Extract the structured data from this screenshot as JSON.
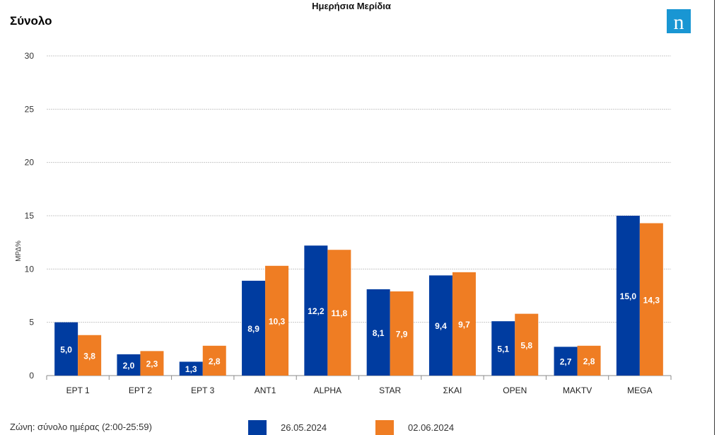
{
  "header": {
    "report_title": "Ημερήσια Μερίδια",
    "section_title": "Σύνολο",
    "logo_letter": "n",
    "logo_color": "#1996d3"
  },
  "footer": {
    "zone_text": "Ζώνη: σύνολο ημέρας (2:00-25:59)"
  },
  "chart_data": {
    "type": "bar",
    "title": "",
    "xlabel": "",
    "ylabel": "ΜΡΔ%",
    "ylim": [
      0,
      30
    ],
    "yticks": [
      0,
      5,
      10,
      15,
      20,
      25,
      30
    ],
    "grid": true,
    "legend_position": "bottom",
    "categories": [
      "ΕΡΤ 1",
      "ΕΡΤ 2",
      "ΕΡΤ 3",
      "ANT1",
      "ALPHA",
      "STAR",
      "ΣΚΑΙ",
      "OPEN",
      "MAKTV",
      "MEGA"
    ],
    "series": [
      {
        "name": "26.05.2024",
        "color": "#003ca0",
        "values": [
          5.0,
          2.0,
          1.3,
          8.9,
          12.2,
          8.1,
          9.4,
          5.1,
          2.7,
          15.0
        ],
        "labels": [
          "5,0",
          "2,0",
          "1,3",
          "8,9",
          "12,2",
          "8,1",
          "9,4",
          "5,1",
          "2,7",
          "15,0"
        ]
      },
      {
        "name": "02.06.2024",
        "color": "#ef7d23",
        "values": [
          3.8,
          2.3,
          2.8,
          10.3,
          11.8,
          7.9,
          9.7,
          5.8,
          2.8,
          14.3
        ],
        "labels": [
          "3,8",
          "2,3",
          "2,8",
          "10,3",
          "11,8",
          "7,9",
          "9,7",
          "5,8",
          "2,8",
          "14,3"
        ]
      }
    ]
  }
}
